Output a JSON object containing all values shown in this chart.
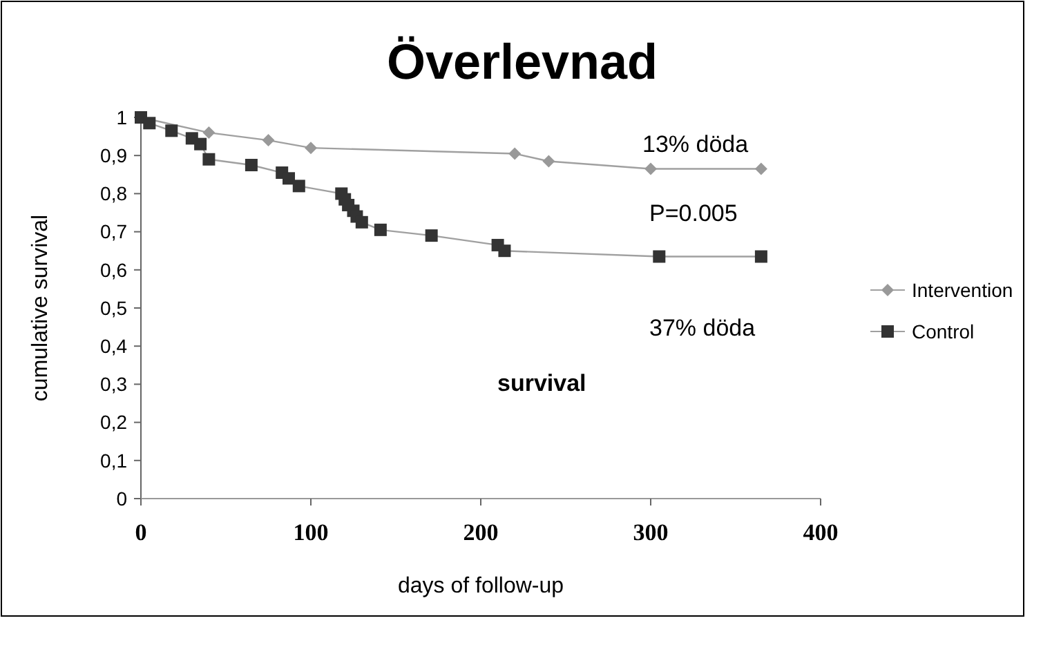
{
  "chart_data": {
    "type": "line",
    "title": "Överlevnad",
    "xlabel": "days of follow-up",
    "ylabel": "cumulative survival",
    "xlim": [
      0,
      400
    ],
    "xticks": [
      0,
      100,
      200,
      300,
      400
    ],
    "ylim": [
      0,
      1
    ],
    "yticks": [
      0,
      {
        "value": 0.1,
        "label": "0,1"
      },
      {
        "value": 0.2,
        "label": "0,2"
      },
      {
        "value": 0.3,
        "label": "0,3"
      },
      {
        "value": 0.4,
        "label": "0,4"
      },
      {
        "value": 0.5,
        "label": "0,5"
      },
      {
        "value": 0.6,
        "label": "0,6"
      },
      {
        "value": 0.7,
        "label": "0,7"
      },
      {
        "value": 0.8,
        "label": "0,8"
      },
      {
        "value": 0.9,
        "label": "0,9"
      },
      1
    ],
    "grid": false,
    "legend": "right",
    "line_style": "solid",
    "annotations": [
      "13% döda",
      "P=0.005",
      "37% döda",
      "survival"
    ],
    "series": [
      {
        "name": "Intervention",
        "color": "#999999",
        "marker": "diamond",
        "x": [
          0,
          5,
          40,
          75,
          100,
          220,
          240,
          300,
          365
        ],
        "values": [
          1,
          null,
          0.96,
          0.94,
          0.92,
          0.905,
          0.885,
          0.865,
          0.865
        ]
      },
      {
        "name": "Control",
        "color": "#333333",
        "marker": "square",
        "x": [
          0,
          5,
          18,
          30,
          35,
          40,
          65,
          83,
          87,
          93,
          118,
          120,
          122,
          125,
          127,
          130,
          141,
          171,
          210,
          214,
          305,
          365
        ],
        "values": [
          1,
          0.985,
          0.965,
          0.945,
          0.93,
          0.89,
          0.875,
          0.855,
          0.84,
          0.82,
          0.8,
          0.785,
          0.77,
          0.755,
          0.74,
          0.725,
          0.705,
          0.69,
          0.665,
          0.65,
          0.635,
          0.635
        ]
      }
    ]
  }
}
